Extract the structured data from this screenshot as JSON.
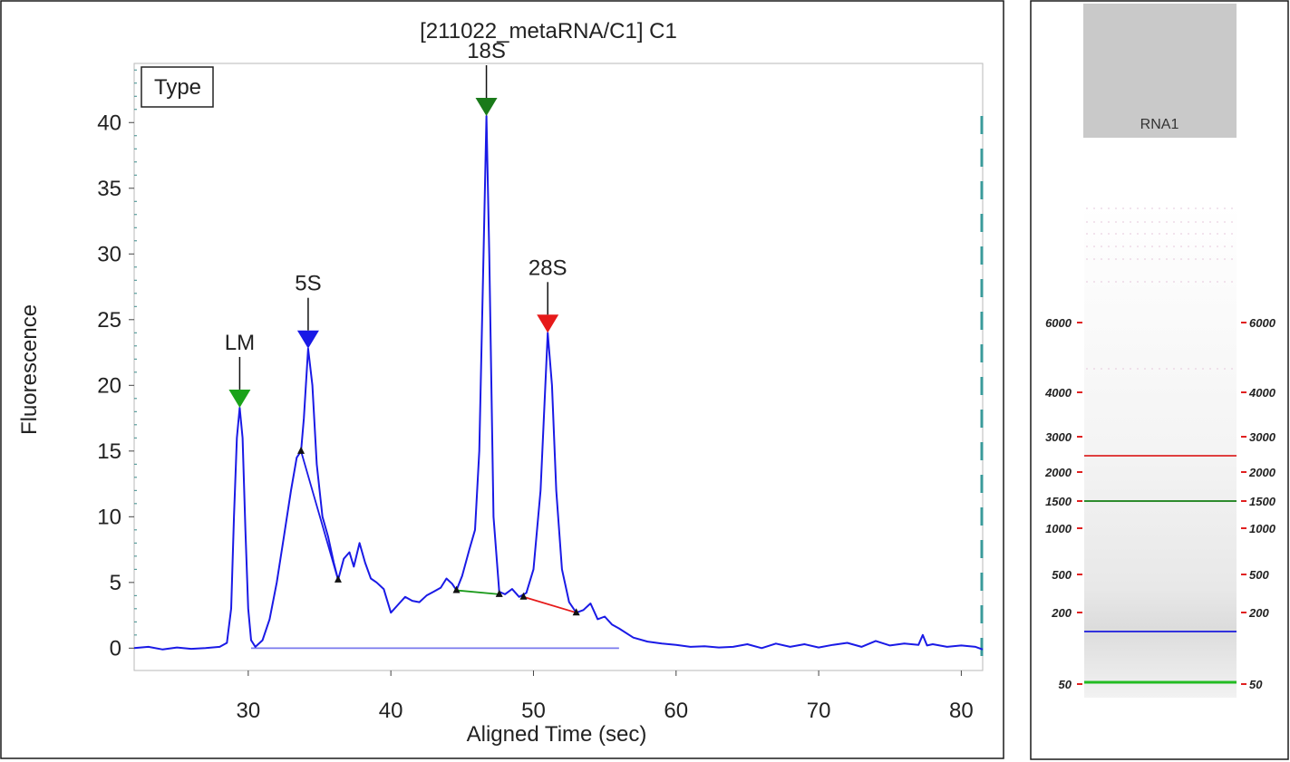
{
  "chart_data": [
    {
      "type": "line",
      "title": "[211022_metaRNA/C1] C1",
      "xlabel": "Aligned Time (sec)",
      "ylabel": "Fluorescence",
      "xlim": [
        22,
        81.5
      ],
      "ylim": [
        -1.7,
        44.5
      ],
      "xticks": [
        30,
        40,
        50,
        60,
        70,
        80
      ],
      "yticks": [
        0,
        5,
        10,
        15,
        20,
        25,
        30,
        35,
        40
      ],
      "grid": false,
      "legend_box": "Type",
      "series": [
        {
          "color": "#1a1ae6",
          "points": [
            [
              22.0,
              0.0
            ],
            [
              23.0,
              0.1
            ],
            [
              24.0,
              -0.1
            ],
            [
              25.0,
              0.05
            ],
            [
              26.0,
              -0.05
            ],
            [
              27.0,
              0.0
            ],
            [
              28.0,
              0.1
            ],
            [
              28.5,
              0.4
            ],
            [
              28.8,
              3.0
            ],
            [
              29.0,
              10.0
            ],
            [
              29.2,
              16.0
            ],
            [
              29.4,
              18.3
            ],
            [
              29.6,
              16.0
            ],
            [
              29.8,
              9.0
            ],
            [
              30.0,
              3.0
            ],
            [
              30.2,
              0.6
            ],
            [
              30.5,
              0.1
            ],
            [
              31.0,
              0.6
            ],
            [
              31.5,
              2.2
            ],
            [
              32.0,
              5.0
            ],
            [
              32.5,
              8.5
            ],
            [
              33.0,
              12.0
            ],
            [
              33.4,
              14.5
            ],
            [
              33.7,
              15.0
            ],
            [
              33.9,
              17.5
            ],
            [
              34.2,
              22.8
            ],
            [
              34.5,
              20.0
            ],
            [
              34.8,
              14.0
            ],
            [
              35.2,
              10.0
            ],
            [
              35.6,
              8.5
            ],
            [
              36.0,
              6.5
            ],
            [
              36.3,
              5.2
            ],
            [
              36.7,
              6.8
            ],
            [
              37.1,
              7.3
            ],
            [
              37.4,
              6.2
            ],
            [
              37.8,
              8.0
            ],
            [
              38.2,
              6.5
            ],
            [
              38.6,
              5.3
            ],
            [
              39.0,
              5.0
            ],
            [
              39.5,
              4.5
            ],
            [
              40.0,
              2.7
            ],
            [
              40.5,
              3.3
            ],
            [
              41.0,
              3.9
            ],
            [
              41.5,
              3.6
            ],
            [
              42.0,
              3.5
            ],
            [
              42.5,
              4.0
            ],
            [
              43.0,
              4.3
            ],
            [
              43.5,
              4.6
            ],
            [
              43.9,
              5.3
            ],
            [
              44.3,
              4.9
            ],
            [
              44.6,
              4.4
            ],
            [
              45.0,
              5.5
            ],
            [
              45.5,
              7.5
            ],
            [
              45.9,
              9.0
            ],
            [
              46.2,
              15.0
            ],
            [
              46.5,
              30.0
            ],
            [
              46.7,
              40.5
            ],
            [
              46.9,
              30.0
            ],
            [
              47.2,
              10.0
            ],
            [
              47.6,
              4.3
            ],
            [
              48.0,
              4.1
            ],
            [
              48.5,
              4.5
            ],
            [
              49.0,
              3.9
            ],
            [
              49.5,
              4.2
            ],
            [
              50.0,
              6.0
            ],
            [
              50.5,
              12.0
            ],
            [
              51.0,
              24.0
            ],
            [
              51.3,
              20.0
            ],
            [
              51.6,
              12.0
            ],
            [
              52.0,
              6.0
            ],
            [
              52.5,
              3.5
            ],
            [
              53.0,
              2.7
            ],
            [
              53.5,
              2.9
            ],
            [
              54.0,
              3.4
            ],
            [
              54.5,
              2.2
            ],
            [
              55.0,
              2.4
            ],
            [
              55.5,
              1.8
            ],
            [
              56.0,
              1.5
            ],
            [
              57.0,
              0.8
            ],
            [
              58.0,
              0.5
            ],
            [
              59.0,
              0.35
            ],
            [
              60.0,
              0.25
            ],
            [
              61.0,
              0.1
            ],
            [
              62.0,
              0.15
            ],
            [
              63.0,
              0.05
            ],
            [
              64.0,
              0.1
            ],
            [
              65.0,
              0.3
            ],
            [
              66.0,
              0.0
            ],
            [
              67.0,
              0.35
            ],
            [
              68.0,
              0.1
            ],
            [
              69.0,
              0.3
            ],
            [
              70.0,
              0.05
            ],
            [
              71.0,
              0.25
            ],
            [
              72.0,
              0.4
            ],
            [
              73.0,
              0.1
            ],
            [
              74.0,
              0.55
            ],
            [
              75.0,
              0.2
            ],
            [
              76.0,
              0.35
            ],
            [
              77.0,
              0.25
            ],
            [
              77.3,
              1.0
            ],
            [
              77.6,
              0.2
            ],
            [
              78.0,
              0.3
            ],
            [
              79.0,
              0.1
            ],
            [
              80.0,
              0.2
            ],
            [
              81.0,
              0.1
            ],
            [
              81.5,
              -0.1
            ]
          ]
        }
      ],
      "peaks": [
        {
          "label": "LM",
          "x": 29.4,
          "y": 18.3,
          "color": "#1aa21a"
        },
        {
          "label": "5S",
          "x": 34.2,
          "y": 22.8,
          "color": "#1a1ae6"
        },
        {
          "label": "18S",
          "x": 46.7,
          "y": 40.5,
          "color": "#1a7a1a"
        },
        {
          "label": "28S",
          "x": 51.0,
          "y": 24.0,
          "color": "#e61a1a"
        }
      ],
      "baselines": [
        {
          "from": [
            30.2,
            0.0
          ],
          "to": [
            56.0,
            0.0
          ],
          "color": "#7a7aee"
        },
        {
          "from": [
            33.7,
            15.0
          ],
          "to": [
            36.3,
            5.2
          ],
          "color": "#1a1ae6"
        },
        {
          "from": [
            44.6,
            4.4
          ],
          "to": [
            47.6,
            4.1
          ],
          "color": "#1a9a1a"
        },
        {
          "from": [
            49.3,
            3.9
          ],
          "to": [
            53.0,
            2.7
          ],
          "color": "#e61a1a"
        }
      ],
      "markers": [
        [
          33.7,
          15.0
        ],
        [
          36.3,
          5.2
        ],
        [
          44.6,
          4.4
        ],
        [
          47.6,
          4.1
        ],
        [
          49.3,
          3.9
        ],
        [
          53.0,
          2.7
        ]
      ]
    },
    {
      "type": "gel",
      "lane_label": "RNA1",
      "ladder": [
        "6000",
        "4000",
        "3000",
        "2000",
        "1500",
        "1000",
        "500",
        "200",
        "50"
      ],
      "bands": [
        {
          "color": "#e04040",
          "size_nt": 2400
        },
        {
          "color": "#2e8b2e",
          "size_nt": 1500
        },
        {
          "color": "#3333dd",
          "size_nt": 140
        },
        {
          "color": "#22bb22",
          "size_nt": 50
        }
      ]
    }
  ]
}
